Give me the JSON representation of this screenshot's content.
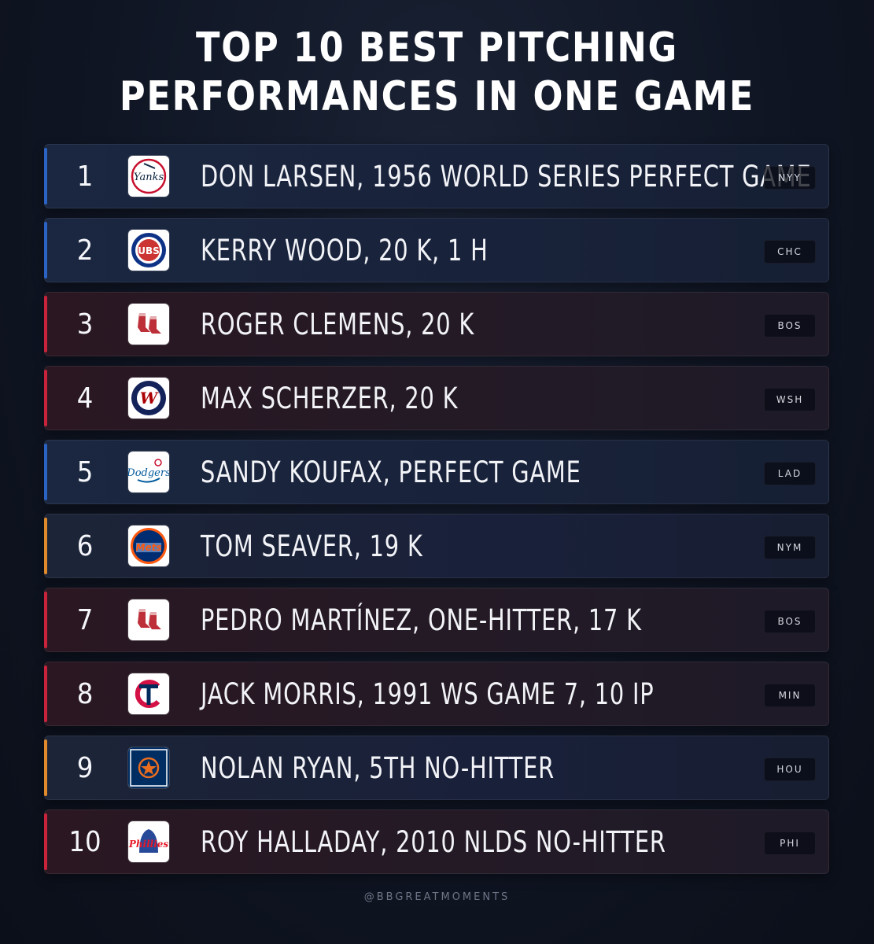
{
  "title": {
    "line1": "TOP 10 BEST PITCHING",
    "line2": "PERFORMANCES IN ONE GAME"
  },
  "rows": [
    {
      "rank": "1",
      "text": "DON LARSEN, 1956 WORLD SERIES PERFECT GAME",
      "badge": "NYY",
      "accent": "blue",
      "logo_icon": "yankees-logo-icon"
    },
    {
      "rank": "2",
      "text": "KERRY WOOD, 20 K, 1 H",
      "badge": "CHC",
      "accent": "blue",
      "logo_icon": "cubs-logo-icon"
    },
    {
      "rank": "3",
      "text": "ROGER CLEMENS, 20 K",
      "badge": "BOS",
      "accent": "red",
      "logo_icon": "red-sox-logo-icon"
    },
    {
      "rank": "4",
      "text": "MAX SCHERZER, 20 K",
      "badge": "WSH",
      "accent": "red",
      "logo_icon": "nationals-logo-icon"
    },
    {
      "rank": "5",
      "text": "SANDY KOUFAX, PERFECT GAME",
      "badge": "LAD",
      "accent": "blue",
      "logo_icon": "dodgers-logo-icon"
    },
    {
      "rank": "6",
      "text": "TOM SEAVER, 19 K",
      "badge": "NYM",
      "accent": "orange",
      "logo_icon": "mets-logo-icon"
    },
    {
      "rank": "7",
      "text": "PEDRO MARTÍNEZ, ONE-HITTER, 17 K",
      "badge": "BOS",
      "accent": "red",
      "logo_icon": "red-sox-logo-icon"
    },
    {
      "rank": "8",
      "text": "JACK MORRIS, 1991 WS GAME 7, 10 IP",
      "badge": "MIN",
      "accent": "red",
      "logo_icon": "twins-logo-icon"
    },
    {
      "rank": "9",
      "text": "NOLAN RYAN, 5TH NO-HITTER",
      "badge": "HOU",
      "accent": "orange",
      "logo_icon": "astros-logo-icon"
    },
    {
      "rank": "10",
      "text": "ROY HALLADAY, 2010 NLDS NO-HITTER",
      "badge": "PHI",
      "accent": "red",
      "logo_icon": "phillies-logo-icon"
    }
  ],
  "footer": "@BBGREATMOMENTS",
  "colors": {
    "blue_accent": "#2b63c4",
    "red_accent": "#c8233a",
    "orange_accent": "#e08a2c",
    "background": "#0f1523"
  }
}
